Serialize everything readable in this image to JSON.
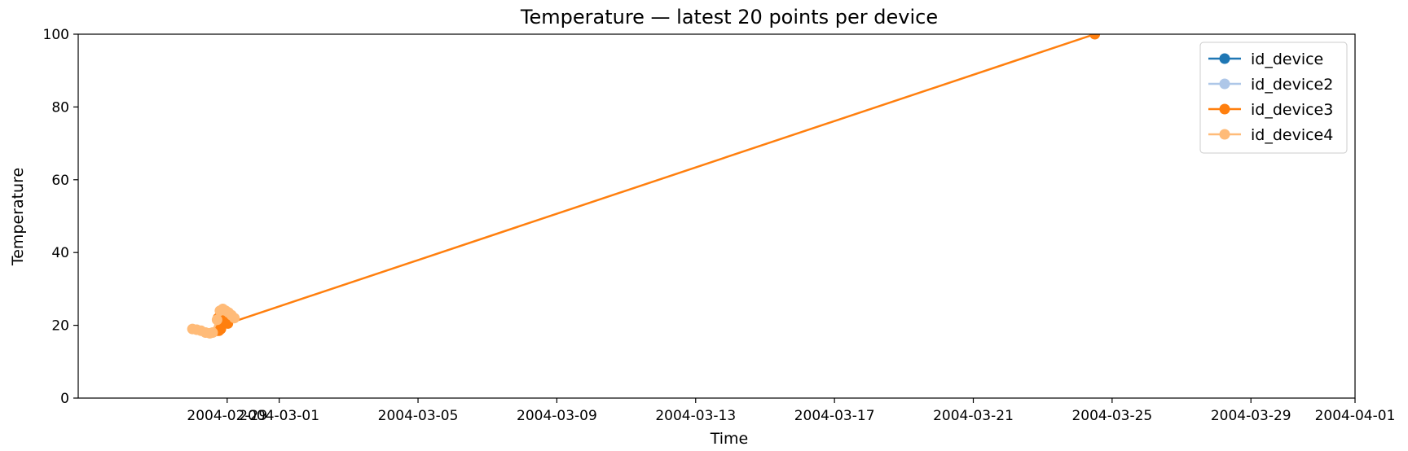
{
  "chart_data": {
    "type": "line",
    "title": "Temperature — latest 20 points per device",
    "xlabel": "Time",
    "ylabel": "Temperature",
    "x_axis_type": "date",
    "xlim": [
      "2004-02-24T05:00",
      "2004-04-01T00:00"
    ],
    "ylim": [
      0,
      100
    ],
    "x_ticks": [
      {
        "value": "2004-02-28T12:00",
        "label": "2004-02-29"
      },
      {
        "value": "2004-03-01T00:00",
        "label": "2004-03-01"
      },
      {
        "value": "2004-03-05T00:00",
        "label": "2004-03-05"
      },
      {
        "value": "2004-03-09T00:00",
        "label": "2004-03-09"
      },
      {
        "value": "2004-03-13T00:00",
        "label": "2004-03-13"
      },
      {
        "value": "2004-03-17T00:00",
        "label": "2004-03-17"
      },
      {
        "value": "2004-03-21T00:00",
        "label": "2004-03-21"
      },
      {
        "value": "2004-03-25T00:00",
        "label": "2004-03-25"
      },
      {
        "value": "2004-03-29T00:00",
        "label": "2004-03-29"
      },
      {
        "value": "2004-04-01T00:00",
        "label": "2004-04-01"
      }
    ],
    "y_ticks": [
      0,
      20,
      40,
      60,
      80,
      100
    ],
    "grid": false,
    "legend_position": "top-right",
    "series": [
      {
        "name": "id_device",
        "color": "#1f77b4",
        "marker": "circle",
        "points": [
          {
            "x": "2004-02-28T08:00",
            "y": 23.0
          },
          {
            "x": "2004-02-28T09:00",
            "y": 23.5
          },
          {
            "x": "2004-02-28T10:00",
            "y": 23.8
          },
          {
            "x": "2004-02-28T11:00",
            "y": 23.2
          }
        ]
      },
      {
        "name": "id_device2",
        "color": "#aec7e8",
        "marker": "circle",
        "points": [
          {
            "x": "2004-02-28T07:30",
            "y": 22.5
          },
          {
            "x": "2004-02-28T08:30",
            "y": 23.5
          },
          {
            "x": "2004-02-28T09:30",
            "y": 24.0
          },
          {
            "x": "2004-02-28T10:30",
            "y": 23.6
          }
        ]
      },
      {
        "name": "id_device3",
        "color": "#ff7f0e",
        "marker": "circle",
        "points": [
          {
            "x": "2004-02-28T05:00",
            "y": 18.5
          },
          {
            "x": "2004-02-28T05:40",
            "y": 22.0
          },
          {
            "x": "2004-02-28T06:20",
            "y": 18.5
          },
          {
            "x": "2004-02-28T07:00",
            "y": 22.5
          },
          {
            "x": "2004-02-28T07:40",
            "y": 19.0
          },
          {
            "x": "2004-02-28T08:20",
            "y": 21.5
          },
          {
            "x": "2004-02-28T10:00",
            "y": 22.0
          },
          {
            "x": "2004-02-28T11:30",
            "y": 21.0
          },
          {
            "x": "2004-02-28T12:30",
            "y": 20.5
          },
          {
            "x": "2004-03-24T12:00",
            "y": 100.0
          }
        ]
      },
      {
        "name": "id_device4",
        "color": "#ffbb78",
        "marker": "circle",
        "points": [
          {
            "x": "2004-02-27T12:00",
            "y": 19.0
          },
          {
            "x": "2004-02-27T15:00",
            "y": 18.8
          },
          {
            "x": "2004-02-27T18:00",
            "y": 18.5
          },
          {
            "x": "2004-02-27T21:00",
            "y": 18.0
          },
          {
            "x": "2004-02-28T00:00",
            "y": 17.8
          },
          {
            "x": "2004-02-28T02:00",
            "y": 18.0
          },
          {
            "x": "2004-02-28T05:00",
            "y": 21.5
          },
          {
            "x": "2004-02-28T07:00",
            "y": 24.0
          },
          {
            "x": "2004-02-28T09:00",
            "y": 24.5
          },
          {
            "x": "2004-02-28T11:00",
            "y": 24.0
          },
          {
            "x": "2004-02-28T13:00",
            "y": 23.5
          },
          {
            "x": "2004-02-28T15:00",
            "y": 22.8
          },
          {
            "x": "2004-02-28T17:00",
            "y": 22.0
          }
        ]
      }
    ]
  }
}
